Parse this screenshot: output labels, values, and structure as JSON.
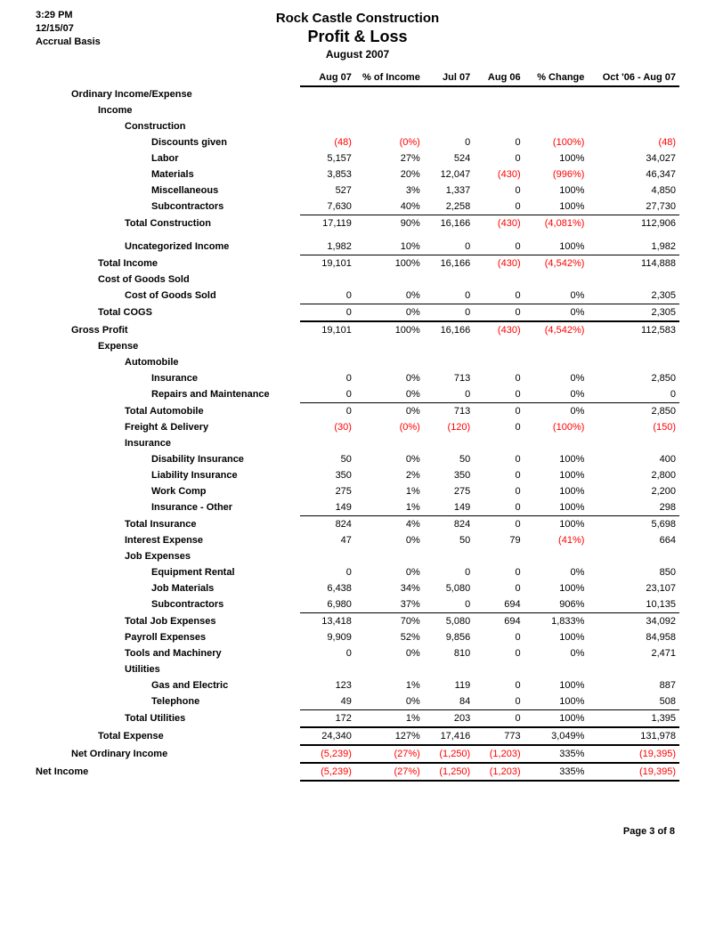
{
  "meta": {
    "time": "3:29 PM",
    "date": "12/15/07",
    "basis": "Accrual Basis",
    "company": "Rock Castle Construction",
    "title": "Profit & Loss",
    "period": "August 2007",
    "footer": "Page 3 of 8"
  },
  "columns": [
    "Aug 07",
    "% of Income",
    "Jul 07",
    "Aug 06",
    "% Change",
    "Oct '06 - Aug 07"
  ],
  "rows": [
    {
      "label": "Ordinary Income/Expense",
      "indent": 1,
      "vals": [
        null,
        null,
        null,
        null,
        null,
        null
      ]
    },
    {
      "label": "Income",
      "indent": 2,
      "vals": [
        null,
        null,
        null,
        null,
        null,
        null
      ]
    },
    {
      "label": "Construction",
      "indent": 3,
      "vals": [
        null,
        null,
        null,
        null,
        null,
        null
      ]
    },
    {
      "label": "Discounts given",
      "indent": 4,
      "vals": [
        "(48)",
        "(0%)",
        "0",
        "0",
        "(100%)",
        "(48)"
      ],
      "neg": [
        0,
        1,
        4,
        5
      ]
    },
    {
      "label": "Labor",
      "indent": 4,
      "vals": [
        "5,157",
        "27%",
        "524",
        "0",
        "100%",
        "34,027"
      ]
    },
    {
      "label": "Materials",
      "indent": 4,
      "vals": [
        "3,853",
        "20%",
        "12,047",
        "(430)",
        "(996%)",
        "46,347"
      ],
      "neg": [
        3,
        4
      ]
    },
    {
      "label": "Miscellaneous",
      "indent": 4,
      "vals": [
        "527",
        "3%",
        "1,337",
        "0",
        "100%",
        "4,850"
      ]
    },
    {
      "label": "Subcontractors",
      "indent": 4,
      "vals": [
        "7,630",
        "40%",
        "2,258",
        "0",
        "100%",
        "27,730"
      ]
    },
    {
      "label": "Total Construction",
      "indent": 3,
      "vals": [
        "17,119",
        "90%",
        "16,166",
        "(430)",
        "(4,081%)",
        "112,906"
      ],
      "neg": [
        3,
        4
      ],
      "style": "sum"
    },
    {
      "spacer": true
    },
    {
      "label": "Uncategorized Income",
      "indent": 3,
      "vals": [
        "1,982",
        "10%",
        "0",
        "0",
        "100%",
        "1,982"
      ]
    },
    {
      "label": "Total Income",
      "indent": 2,
      "vals": [
        "19,101",
        "100%",
        "16,166",
        "(430)",
        "(4,542%)",
        "114,888"
      ],
      "neg": [
        3,
        4
      ],
      "style": "sum"
    },
    {
      "label": "Cost of Goods Sold",
      "indent": 2,
      "vals": [
        null,
        null,
        null,
        null,
        null,
        null
      ]
    },
    {
      "label": "Cost of Goods Sold",
      "indent": 3,
      "vals": [
        "0",
        "0%",
        "0",
        "0",
        "0%",
        "2,305"
      ]
    },
    {
      "label": "Total COGS",
      "indent": 2,
      "vals": [
        "0",
        "0%",
        "0",
        "0",
        "0%",
        "2,305"
      ],
      "style": "sum"
    },
    {
      "label": "Gross Profit",
      "indent": 1,
      "vals": [
        "19,101",
        "100%",
        "16,166",
        "(430)",
        "(4,542%)",
        "112,583"
      ],
      "neg": [
        3,
        4
      ],
      "style": "heavy"
    },
    {
      "label": "Expense",
      "indent": 2,
      "vals": [
        null,
        null,
        null,
        null,
        null,
        null
      ]
    },
    {
      "label": "Automobile",
      "indent": 3,
      "vals": [
        null,
        null,
        null,
        null,
        null,
        null
      ]
    },
    {
      "label": "Insurance",
      "indent": 4,
      "vals": [
        "0",
        "0%",
        "713",
        "0",
        "0%",
        "2,850"
      ]
    },
    {
      "label": "Repairs and Maintenance",
      "indent": 4,
      "vals": [
        "0",
        "0%",
        "0",
        "0",
        "0%",
        "0"
      ]
    },
    {
      "label": "Total Automobile",
      "indent": 3,
      "vals": [
        "0",
        "0%",
        "713",
        "0",
        "0%",
        "2,850"
      ],
      "style": "sum"
    },
    {
      "label": "Freight & Delivery",
      "indent": 3,
      "vals": [
        "(30)",
        "(0%)",
        "(120)",
        "0",
        "(100%)",
        "(150)"
      ],
      "neg": [
        0,
        1,
        2,
        4,
        5
      ]
    },
    {
      "label": "Insurance",
      "indent": 3,
      "vals": [
        null,
        null,
        null,
        null,
        null,
        null
      ]
    },
    {
      "label": "Disability Insurance",
      "indent": 4,
      "vals": [
        "50",
        "0%",
        "50",
        "0",
        "100%",
        "400"
      ]
    },
    {
      "label": "Liability Insurance",
      "indent": 4,
      "vals": [
        "350",
        "2%",
        "350",
        "0",
        "100%",
        "2,800"
      ]
    },
    {
      "label": "Work Comp",
      "indent": 4,
      "vals": [
        "275",
        "1%",
        "275",
        "0",
        "100%",
        "2,200"
      ]
    },
    {
      "label": "Insurance - Other",
      "indent": 4,
      "vals": [
        "149",
        "1%",
        "149",
        "0",
        "100%",
        "298"
      ]
    },
    {
      "label": "Total Insurance",
      "indent": 3,
      "vals": [
        "824",
        "4%",
        "824",
        "0",
        "100%",
        "5,698"
      ],
      "style": "sum"
    },
    {
      "label": "Interest Expense",
      "indent": 3,
      "vals": [
        "47",
        "0%",
        "50",
        "79",
        "(41%)",
        "664"
      ],
      "neg": [
        4
      ]
    },
    {
      "label": "Job Expenses",
      "indent": 3,
      "vals": [
        null,
        null,
        null,
        null,
        null,
        null
      ]
    },
    {
      "label": "Equipment Rental",
      "indent": 4,
      "vals": [
        "0",
        "0%",
        "0",
        "0",
        "0%",
        "850"
      ]
    },
    {
      "label": "Job Materials",
      "indent": 4,
      "vals": [
        "6,438",
        "34%",
        "5,080",
        "0",
        "100%",
        "23,107"
      ]
    },
    {
      "label": "Subcontractors",
      "indent": 4,
      "vals": [
        "6,980",
        "37%",
        "0",
        "694",
        "906%",
        "10,135"
      ]
    },
    {
      "label": "Total Job Expenses",
      "indent": 3,
      "vals": [
        "13,418",
        "70%",
        "5,080",
        "694",
        "1,833%",
        "34,092"
      ],
      "style": "sum"
    },
    {
      "label": "Payroll Expenses",
      "indent": 3,
      "vals": [
        "9,909",
        "52%",
        "9,856",
        "0",
        "100%",
        "84,958"
      ]
    },
    {
      "label": "Tools and Machinery",
      "indent": 3,
      "vals": [
        "0",
        "0%",
        "810",
        "0",
        "0%",
        "2,471"
      ]
    },
    {
      "label": "Utilities",
      "indent": 3,
      "vals": [
        null,
        null,
        null,
        null,
        null,
        null
      ]
    },
    {
      "label": "Gas and Electric",
      "indent": 4,
      "vals": [
        "123",
        "1%",
        "119",
        "0",
        "100%",
        "887"
      ]
    },
    {
      "label": "Telephone",
      "indent": 4,
      "vals": [
        "49",
        "0%",
        "84",
        "0",
        "100%",
        "508"
      ]
    },
    {
      "label": "Total Utilities",
      "indent": 3,
      "vals": [
        "172",
        "1%",
        "203",
        "0",
        "100%",
        "1,395"
      ],
      "style": "sum"
    },
    {
      "label": "Total Expense",
      "indent": 2,
      "vals": [
        "24,340",
        "127%",
        "17,416",
        "773",
        "3,049%",
        "131,978"
      ],
      "style": "heavy"
    },
    {
      "label": "Net Ordinary Income",
      "indent": 1,
      "vals": [
        "(5,239)",
        "(27%)",
        "(1,250)",
        "(1,203)",
        "335%",
        "(19,395)"
      ],
      "neg": [
        0,
        1,
        2,
        3,
        5
      ],
      "style": "heavy"
    },
    {
      "label": "Net Income",
      "indent": 0,
      "vals": [
        "(5,239)",
        "(27%)",
        "(1,250)",
        "(1,203)",
        "335%",
        "(19,395)"
      ],
      "neg": [
        0,
        1,
        2,
        3,
        5
      ],
      "style": "dbl"
    }
  ],
  "colors": {
    "text": "#000000",
    "negative": "#ff0000",
    "background": "#ffffff"
  }
}
